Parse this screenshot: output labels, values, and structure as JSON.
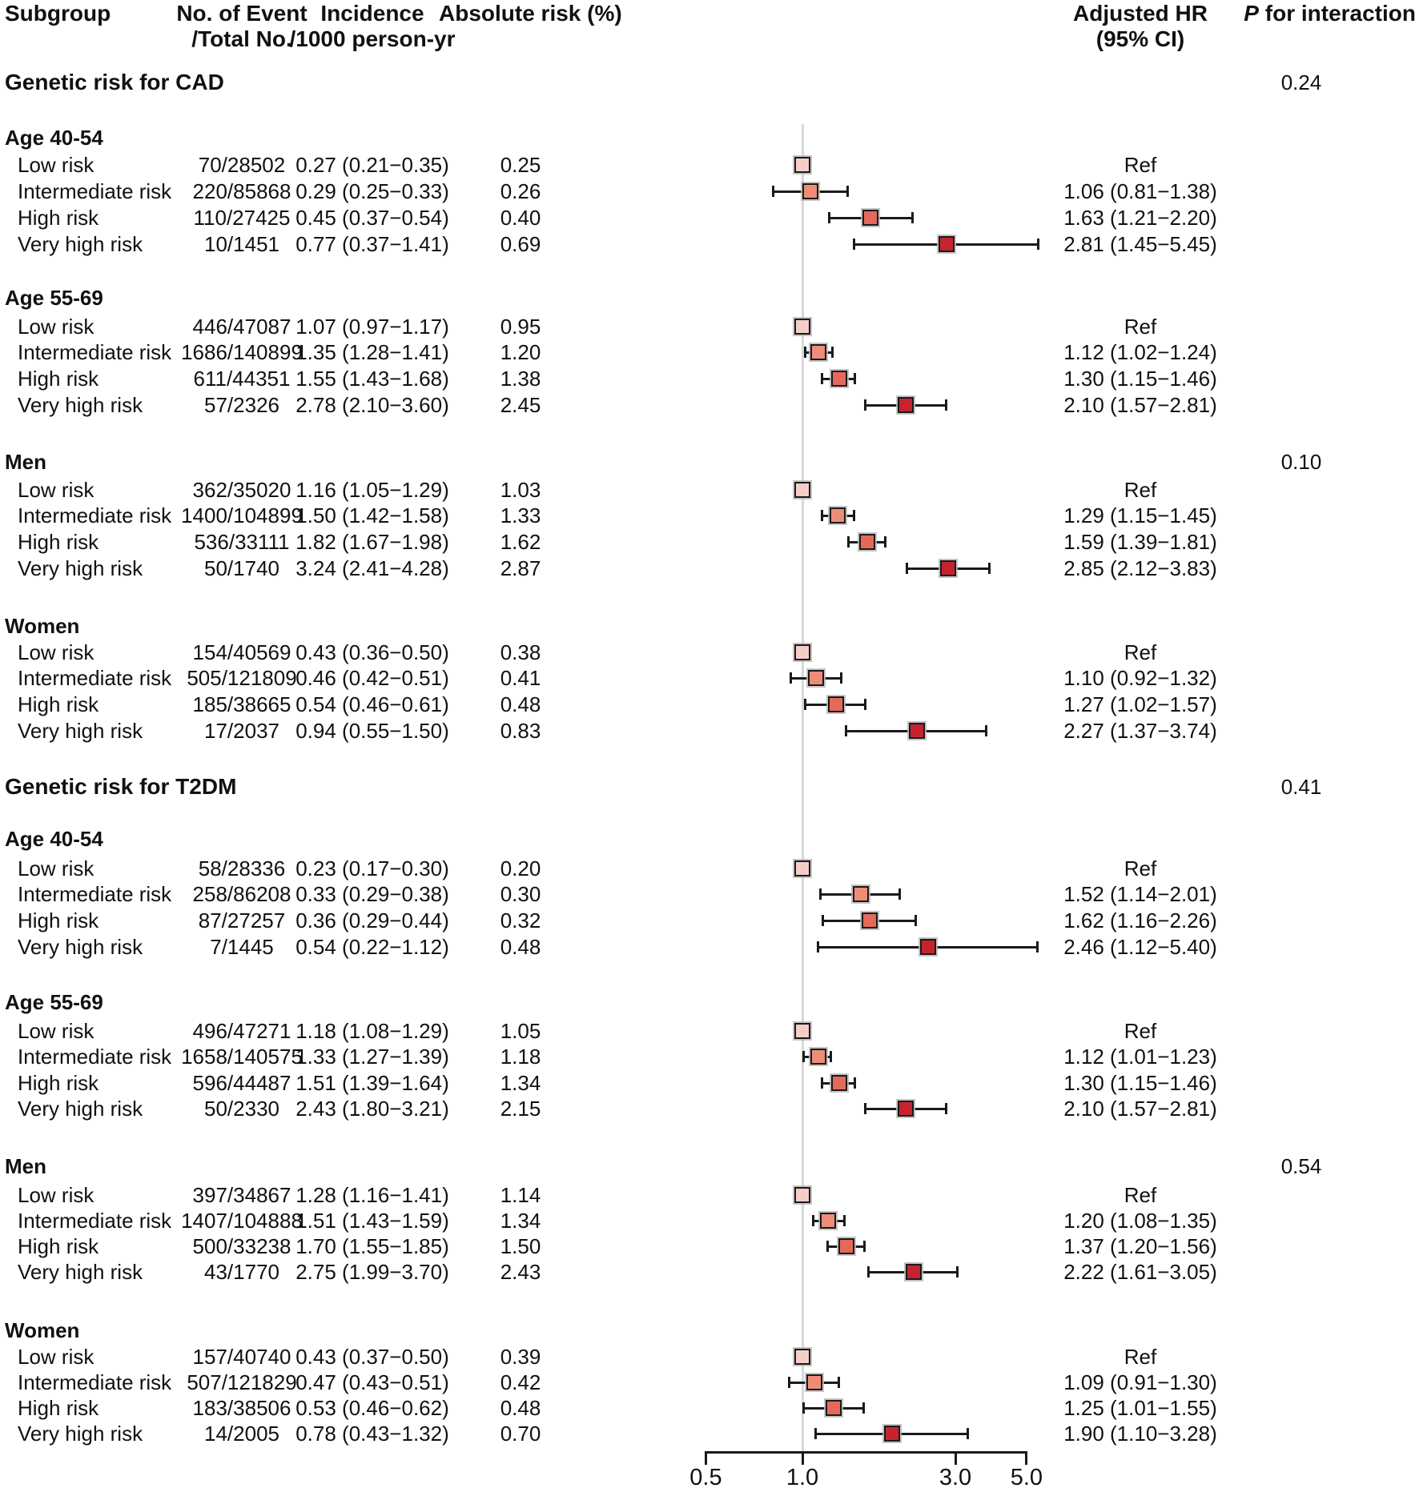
{
  "columns": {
    "subgroup": "Subgroup",
    "events_line1": "No. of Event",
    "events_line2": "/Total No.",
    "incidence_line1": "Incidence",
    "incidence_line2": "/1000 person-yr",
    "absolute_risk": "Absolute risk (%)",
    "hr_line1": "Adjusted HR",
    "hr_line2": "(95% CI)",
    "p_italic": "P",
    "p_rest": " for interaction"
  },
  "colors": {
    "low": "#f6cdc6",
    "intermediate": "#ee8d77",
    "high": "#e5695a",
    "very_high": "#c5242f",
    "reference_line": "#d8d8d8",
    "line": "#1a1a1a"
  },
  "chart_data": {
    "type": "forest",
    "x_axis": {
      "scale": "log",
      "ticks": [
        0.5,
        1.0,
        3.0,
        5.0
      ],
      "tick_labels": [
        "0.5",
        "1.0",
        "3.0",
        "5.0"
      ],
      "reference_line": 1.0,
      "range": [
        0.5,
        5.0
      ]
    },
    "blocks": [
      {
        "title": "Genetic risk for CAD",
        "p_interaction": "0.24",
        "subgroups": [
          {
            "name": "Age 40-54",
            "p_interaction": "",
            "rows": [
              {
                "label": "Low risk",
                "events_total": "70/28502",
                "incidence": "0.27 (0.21−0.35)",
                "absolute_risk": "0.25",
                "hr_text": "Ref",
                "hr": 1.0,
                "ci_low": null,
                "ci_high": null,
                "level": "low"
              },
              {
                "label": "Intermediate risk",
                "events_total": "220/85868",
                "incidence": "0.29 (0.25−0.33)",
                "absolute_risk": "0.26",
                "hr_text": "1.06 (0.81−1.38)",
                "hr": 1.06,
                "ci_low": 0.81,
                "ci_high": 1.38,
                "level": "intermediate"
              },
              {
                "label": "High risk",
                "events_total": "110/27425",
                "incidence": "0.45 (0.37−0.54)",
                "absolute_risk": "0.40",
                "hr_text": "1.63 (1.21−2.20)",
                "hr": 1.63,
                "ci_low": 1.21,
                "ci_high": 2.2,
                "level": "high"
              },
              {
                "label": "Very high risk",
                "events_total": "10/1451",
                "incidence": "0.77 (0.37−1.41)",
                "absolute_risk": "0.69",
                "hr_text": "2.81 (1.45−5.45)",
                "hr": 2.81,
                "ci_low": 1.45,
                "ci_high": 5.45,
                "level": "very_high"
              }
            ]
          },
          {
            "name": "Age 55-69",
            "p_interaction": "",
            "rows": [
              {
                "label": "Low risk",
                "events_total": "446/47087",
                "incidence": "1.07 (0.97−1.17)",
                "absolute_risk": "0.95",
                "hr_text": "Ref",
                "hr": 1.0,
                "ci_low": null,
                "ci_high": null,
                "level": "low"
              },
              {
                "label": "Intermediate risk",
                "events_total": "1686/140899",
                "incidence": "1.35 (1.28−1.41)",
                "absolute_risk": "1.20",
                "hr_text": "1.12 (1.02−1.24)",
                "hr": 1.12,
                "ci_low": 1.02,
                "ci_high": 1.24,
                "level": "intermediate"
              },
              {
                "label": "High risk",
                "events_total": "611/44351",
                "incidence": "1.55 (1.43−1.68)",
                "absolute_risk": "1.38",
                "hr_text": "1.30 (1.15−1.46)",
                "hr": 1.3,
                "ci_low": 1.15,
                "ci_high": 1.46,
                "level": "high"
              },
              {
                "label": "Very high risk",
                "events_total": "57/2326",
                "incidence": "2.78 (2.10−3.60)",
                "absolute_risk": "2.45",
                "hr_text": "2.10 (1.57−2.81)",
                "hr": 2.1,
                "ci_low": 1.57,
                "ci_high": 2.81,
                "level": "very_high"
              }
            ]
          },
          {
            "name": "Men",
            "p_interaction": "0.10",
            "rows": [
              {
                "label": "Low risk",
                "events_total": "362/35020",
                "incidence": "1.16 (1.05−1.29)",
                "absolute_risk": "1.03",
                "hr_text": "Ref",
                "hr": 1.0,
                "ci_low": null,
                "ci_high": null,
                "level": "low"
              },
              {
                "label": "Intermediate risk",
                "events_total": "1400/104899",
                "incidence": "1.50 (1.42−1.58)",
                "absolute_risk": "1.33",
                "hr_text": "1.29 (1.15−1.45)",
                "hr": 1.29,
                "ci_low": 1.15,
                "ci_high": 1.45,
                "level": "intermediate"
              },
              {
                "label": "High risk",
                "events_total": "536/33111",
                "incidence": "1.82 (1.67−1.98)",
                "absolute_risk": "1.62",
                "hr_text": "1.59 (1.39−1.81)",
                "hr": 1.59,
                "ci_low": 1.39,
                "ci_high": 1.81,
                "level": "high"
              },
              {
                "label": "Very high risk",
                "events_total": "50/1740",
                "incidence": "3.24 (2.41−4.28)",
                "absolute_risk": "2.87",
                "hr_text": "2.85 (2.12−3.83)",
                "hr": 2.85,
                "ci_low": 2.12,
                "ci_high": 3.83,
                "level": "very_high"
              }
            ]
          },
          {
            "name": "Women",
            "p_interaction": "",
            "rows": [
              {
                "label": "Low risk",
                "events_total": "154/40569",
                "incidence": "0.43 (0.36−0.50)",
                "absolute_risk": "0.38",
                "hr_text": "Ref",
                "hr": 1.0,
                "ci_low": null,
                "ci_high": null,
                "level": "low"
              },
              {
                "label": "Intermediate risk",
                "events_total": "505/121809",
                "incidence": "0.46 (0.42−0.51)",
                "absolute_risk": "0.41",
                "hr_text": "1.10 (0.92−1.32)",
                "hr": 1.1,
                "ci_low": 0.92,
                "ci_high": 1.32,
                "level": "intermediate"
              },
              {
                "label": "High risk",
                "events_total": "185/38665",
                "incidence": "0.54 (0.46−0.61)",
                "absolute_risk": "0.48",
                "hr_text": "1.27 (1.02−1.57)",
                "hr": 1.27,
                "ci_low": 1.02,
                "ci_high": 1.57,
                "level": "high"
              },
              {
                "label": "Very high risk",
                "events_total": "17/2037",
                "incidence": "0.94 (0.55−1.50)",
                "absolute_risk": "0.83",
                "hr_text": "2.27 (1.37−3.74)",
                "hr": 2.27,
                "ci_low": 1.37,
                "ci_high": 3.74,
                "level": "very_high"
              }
            ]
          }
        ]
      },
      {
        "title": "Genetic risk for T2DM",
        "p_interaction": "0.41",
        "subgroups": [
          {
            "name": "Age 40-54",
            "p_interaction": "",
            "rows": [
              {
                "label": "Low risk",
                "events_total": "58/28336",
                "incidence": "0.23 (0.17−0.30)",
                "absolute_risk": "0.20",
                "hr_text": "Ref",
                "hr": 1.0,
                "ci_low": null,
                "ci_high": null,
                "level": "low"
              },
              {
                "label": "Intermediate risk",
                "events_total": "258/86208",
                "incidence": "0.33 (0.29−0.38)",
                "absolute_risk": "0.30",
                "hr_text": "1.52 (1.14−2.01)",
                "hr": 1.52,
                "ci_low": 1.14,
                "ci_high": 2.01,
                "level": "intermediate"
              },
              {
                "label": "High risk",
                "events_total": "87/27257",
                "incidence": "0.36 (0.29−0.44)",
                "absolute_risk": "0.32",
                "hr_text": "1.62 (1.16−2.26)",
                "hr": 1.62,
                "ci_low": 1.16,
                "ci_high": 2.26,
                "level": "high"
              },
              {
                "label": "Very high risk",
                "events_total": "7/1445",
                "incidence": "0.54 (0.22−1.12)",
                "absolute_risk": "0.48",
                "hr_text": "2.46 (1.12−5.40)",
                "hr": 2.46,
                "ci_low": 1.12,
                "ci_high": 5.4,
                "level": "very_high"
              }
            ]
          },
          {
            "name": "Age 55-69",
            "p_interaction": "",
            "rows": [
              {
                "label": "Low risk",
                "events_total": "496/47271",
                "incidence": "1.18 (1.08−1.29)",
                "absolute_risk": "1.05",
                "hr_text": "Ref",
                "hr": 1.0,
                "ci_low": null,
                "ci_high": null,
                "level": "low"
              },
              {
                "label": "Intermediate risk",
                "events_total": "1658/140575",
                "incidence": "1.33 (1.27−1.39)",
                "absolute_risk": "1.18",
                "hr_text": "1.12 (1.01−1.23)",
                "hr": 1.12,
                "ci_low": 1.01,
                "ci_high": 1.23,
                "level": "intermediate"
              },
              {
                "label": "High risk",
                "events_total": "596/44487",
                "incidence": "1.51 (1.39−1.64)",
                "absolute_risk": "1.34",
                "hr_text": "1.30 (1.15−1.46)",
                "hr": 1.3,
                "ci_low": 1.15,
                "ci_high": 1.46,
                "level": "high"
              },
              {
                "label": "Very high risk",
                "events_total": "50/2330",
                "incidence": "2.43 (1.80−3.21)",
                "absolute_risk": "2.15",
                "hr_text": "2.10 (1.57−2.81)",
                "hr": 2.1,
                "ci_low": 1.57,
                "ci_high": 2.81,
                "level": "very_high"
              }
            ]
          },
          {
            "name": "Men",
            "p_interaction": "0.54",
            "rows": [
              {
                "label": "Low risk",
                "events_total": "397/34867",
                "incidence": "1.28 (1.16−1.41)",
                "absolute_risk": "1.14",
                "hr_text": "Ref",
                "hr": 1.0,
                "ci_low": null,
                "ci_high": null,
                "level": "low"
              },
              {
                "label": "Intermediate risk",
                "events_total": "1407/104888",
                "incidence": "1.51 (1.43−1.59)",
                "absolute_risk": "1.34",
                "hr_text": "1.20 (1.08−1.35)",
                "hr": 1.2,
                "ci_low": 1.08,
                "ci_high": 1.35,
                "level": "intermediate"
              },
              {
                "label": "High risk",
                "events_total": "500/33238",
                "incidence": "1.70 (1.55−1.85)",
                "absolute_risk": "1.50",
                "hr_text": "1.37 (1.20−1.56)",
                "hr": 1.37,
                "ci_low": 1.2,
                "ci_high": 1.56,
                "level": "high"
              },
              {
                "label": "Very high risk",
                "events_total": "43/1770",
                "incidence": "2.75 (1.99−3.70)",
                "absolute_risk": "2.43",
                "hr_text": "2.22 (1.61−3.05)",
                "hr": 2.22,
                "ci_low": 1.61,
                "ci_high": 3.05,
                "level": "very_high"
              }
            ]
          },
          {
            "name": "Women",
            "p_interaction": "",
            "rows": [
              {
                "label": "Low risk",
                "events_total": "157/40740",
                "incidence": "0.43 (0.37−0.50)",
                "absolute_risk": "0.39",
                "hr_text": "Ref",
                "hr": 1.0,
                "ci_low": null,
                "ci_high": null,
                "level": "low"
              },
              {
                "label": "Intermediate risk",
                "events_total": "507/121829",
                "incidence": "0.47 (0.43−0.51)",
                "absolute_risk": "0.42",
                "hr_text": "1.09 (0.91−1.30)",
                "hr": 1.09,
                "ci_low": 0.91,
                "ci_high": 1.3,
                "level": "intermediate"
              },
              {
                "label": "High risk",
                "events_total": "183/38506",
                "incidence": "0.53 (0.46−0.62)",
                "absolute_risk": "0.48",
                "hr_text": "1.25 (1.01−1.55)",
                "hr": 1.25,
                "ci_low": 1.01,
                "ci_high": 1.55,
                "level": "high"
              },
              {
                "label": "Very high risk",
                "events_total": "14/2005",
                "incidence": "0.78 (0.43−1.32)",
                "absolute_risk": "0.70",
                "hr_text": "1.90 (1.10−3.28)",
                "hr": 1.9,
                "ci_low": 1.1,
                "ci_high": 3.28,
                "level": "very_high"
              }
            ]
          }
        ]
      }
    ]
  }
}
